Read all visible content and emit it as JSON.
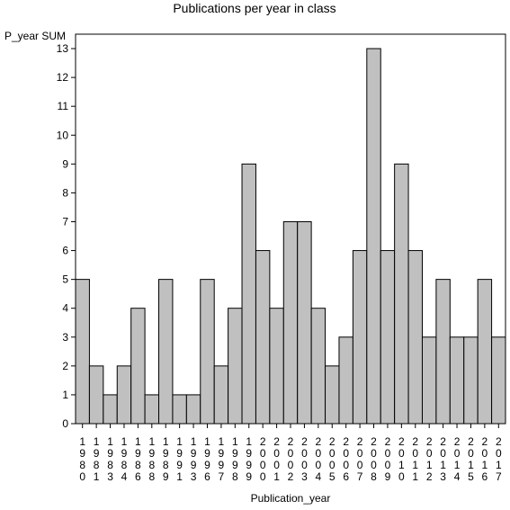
{
  "chart_data": {
    "type": "bar",
    "title": "Publications per year in class",
    "xlabel": "Publication_year",
    "ylabel": "P_year SUM",
    "ylim": [
      0,
      13.5
    ],
    "yticks": [
      0,
      1,
      2,
      3,
      4,
      5,
      6,
      7,
      8,
      9,
      10,
      11,
      12,
      13
    ],
    "grid": false,
    "categories": [
      "1980",
      "1981",
      "1983",
      "1984",
      "1986",
      "1988",
      "1989",
      "1991",
      "1993",
      "1996",
      "1997",
      "1998",
      "1999",
      "2000",
      "2001",
      "2002",
      "2003",
      "2004",
      "2005",
      "2006",
      "2007",
      "2008",
      "2009",
      "2010",
      "2011",
      "2012",
      "2013",
      "2014",
      "2015",
      "2016",
      "2017"
    ],
    "values": [
      5,
      2,
      1,
      2,
      4,
      1,
      5,
      1,
      1,
      5,
      2,
      4,
      9,
      6,
      4,
      7,
      7,
      4,
      2,
      3,
      6,
      13,
      6,
      9,
      6,
      3,
      5,
      3,
      3,
      5,
      3
    ],
    "colors": {
      "bar_fill": "#c0c0c0",
      "bar_stroke": "#000000",
      "axis": "#000000",
      "background": "#ffffff"
    }
  }
}
